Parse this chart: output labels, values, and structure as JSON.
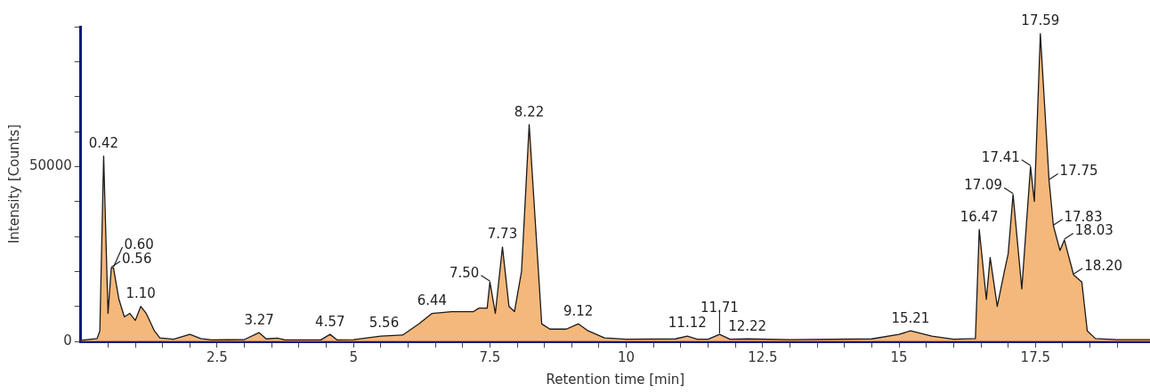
{
  "chart_data": {
    "type": "area",
    "xlabel": "Retention time [min]",
    "ylabel": "Intensity [Counts]",
    "xlim": [
      0,
      19.6
    ],
    "ylim": [
      0,
      90000
    ],
    "xticks": [
      {
        "value": 0.5,
        "label": null
      },
      {
        "value": 1,
        "label": null
      },
      {
        "value": 1.5,
        "label": null
      },
      {
        "value": 2,
        "label": null
      },
      2.5,
      {
        "value": 3,
        "label": null
      },
      {
        "value": 3.5,
        "label": null
      },
      {
        "value": 4,
        "label": null
      },
      {
        "value": 4.5,
        "label": null
      },
      5,
      {
        "value": 5.5,
        "label": null
      },
      {
        "value": 6,
        "label": null
      },
      {
        "value": 6.5,
        "label": null
      },
      {
        "value": 7,
        "label": null
      },
      7.5,
      {
        "value": 8,
        "label": null
      },
      {
        "value": 8.5,
        "label": null
      },
      {
        "value": 9,
        "label": null
      },
      {
        "value": 9.5,
        "label": null
      },
      10,
      {
        "value": 10.5,
        "label": null
      },
      {
        "value": 11,
        "label": null
      },
      {
        "value": 11.5,
        "label": null
      },
      {
        "value": 12,
        "label": null
      },
      12.5,
      {
        "value": 13,
        "label": null
      },
      {
        "value": 13.5,
        "label": null
      },
      {
        "value": 14,
        "label": null
      },
      {
        "value": 14.5,
        "label": null
      },
      15,
      {
        "value": 15.5,
        "label": null
      },
      {
        "value": 16,
        "label": null
      },
      {
        "value": 16.5,
        "label": null
      },
      {
        "value": 17,
        "label": null
      },
      17.5,
      {
        "value": 18,
        "label": null
      },
      {
        "value": 18.5,
        "label": null
      },
      {
        "value": 19,
        "label": null
      }
    ],
    "yticks": [
      0,
      {
        "value": 10000,
        "label": null
      },
      {
        "value": 20000,
        "label": null
      },
      {
        "value": 30000,
        "label": null
      },
      {
        "value": 40000,
        "label": null
      },
      50000,
      {
        "value": 60000,
        "label": null
      },
      {
        "value": 70000,
        "label": null
      },
      {
        "value": 80000,
        "label": null
      },
      {
        "value": 90000,
        "label": null
      }
    ],
    "grid": false,
    "legend": false,
    "series": [
      {
        "color": "#f2a65a",
        "x": [
          0,
          0.3,
          0.35,
          0.42,
          0.5,
          0.56,
          0.6,
          0.7,
          0.8,
          0.9,
          1.0,
          1.1,
          1.2,
          1.35,
          1.45,
          1.7,
          2.0,
          2.2,
          2.4,
          3.0,
          3.27,
          3.4,
          3.6,
          3.75,
          4.4,
          4.57,
          4.7,
          5.0,
          5.5,
          5.9,
          6.2,
          6.44,
          6.8,
          7.2,
          7.3,
          7.45,
          7.5,
          7.6,
          7.73,
          7.85,
          7.95,
          8.08,
          8.22,
          8.45,
          8.6,
          8.9,
          9.12,
          9.3,
          9.6,
          10.0,
          10.9,
          11.12,
          11.3,
          11.5,
          11.71,
          11.9,
          12.22,
          13.0,
          14.5,
          15.0,
          15.21,
          15.6,
          16.0,
          16.4,
          16.47,
          16.6,
          16.67,
          16.8,
          16.93,
          17.0,
          17.09,
          17.25,
          17.41,
          17.48,
          17.59,
          17.75,
          17.83,
          17.95,
          18.03,
          18.2,
          18.35,
          18.45,
          18.6,
          19.0,
          19.6
        ],
        "values": [
          300,
          800,
          3000,
          53000,
          8000,
          21000,
          21000,
          12000,
          7000,
          8000,
          6000,
          10000,
          8000,
          3000,
          1000,
          600,
          2000,
          800,
          400,
          500,
          2500,
          700,
          900,
          400,
          400,
          2000,
          400,
          500,
          1500,
          1800,
          5000,
          8000,
          8500,
          8500,
          9500,
          9500,
          17000,
          8000,
          27000,
          10000,
          8500,
          20000,
          62000,
          5000,
          3500,
          3500,
          5000,
          3000,
          1000,
          600,
          700,
          1500,
          600,
          600,
          2000,
          600,
          700,
          500,
          700,
          2000,
          3000,
          1500,
          600,
          800,
          32000,
          12000,
          24000,
          10000,
          20000,
          25000,
          42000,
          15000,
          50000,
          40000,
          88000,
          46000,
          33000,
          26000,
          29000,
          19000,
          17000,
          3000,
          800,
          500,
          500
        ]
      }
    ],
    "annotations": [
      {
        "text": "0.42",
        "x": 0.42,
        "y": 53000
      },
      {
        "text": "0.56",
        "x": 0.56,
        "y": 21000
      },
      {
        "text": "0.60",
        "x": 0.6,
        "y": 21000
      },
      {
        "text": "1.10",
        "x": 1.1,
        "y": 10000
      },
      {
        "text": "3.27",
        "x": 3.27,
        "y": 2500
      },
      {
        "text": "4.57",
        "x": 4.57,
        "y": 2000
      },
      {
        "text": "5.56",
        "x": 5.56,
        "y": 1500
      },
      {
        "text": "6.44",
        "x": 6.44,
        "y": 8000
      },
      {
        "text": "7.50",
        "x": 7.5,
        "y": 17000
      },
      {
        "text": "7.73",
        "x": 7.73,
        "y": 27000
      },
      {
        "text": "8.22",
        "x": 8.22,
        "y": 62000
      },
      {
        "text": "9.12",
        "x": 9.12,
        "y": 5000
      },
      {
        "text": "11.12",
        "x": 11.12,
        "y": 1500
      },
      {
        "text": "11.71",
        "x": 11.71,
        "y": 2000
      },
      {
        "text": "12.22",
        "x": 12.22,
        "y": 700
      },
      {
        "text": "15.21",
        "x": 15.21,
        "y": 3000
      },
      {
        "text": "16.47",
        "x": 16.47,
        "y": 32000
      },
      {
        "text": "17.09",
        "x": 17.09,
        "y": 42000
      },
      {
        "text": "17.41",
        "x": 17.41,
        "y": 50000
      },
      {
        "text": "17.59",
        "x": 17.59,
        "y": 88000
      },
      {
        "text": "17.75",
        "x": 17.75,
        "y": 46000
      },
      {
        "text": "17.83",
        "x": 17.83,
        "y": 33000
      },
      {
        "text": "18.03",
        "x": 18.03,
        "y": 29000
      },
      {
        "text": "18.20",
        "x": 18.2,
        "y": 19000
      }
    ]
  }
}
